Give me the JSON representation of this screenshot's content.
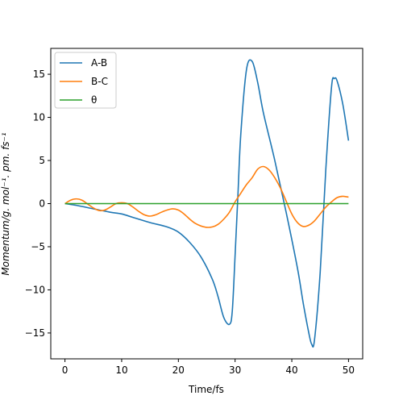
{
  "chart_data": {
    "type": "line",
    "xlabel": "Time/fs",
    "ylabel": "Momentum/g. mol⁻¹. pm. fs⁻¹",
    "xlim": [
      -2.5,
      52.5
    ],
    "ylim": [
      -18.0,
      18.0
    ],
    "xticks": [
      0,
      10,
      20,
      30,
      40,
      50
    ],
    "xtick_labels": [
      "0",
      "10",
      "20",
      "30",
      "40",
      "50"
    ],
    "yticks": [
      15,
      10,
      5,
      0,
      -5,
      -10,
      -15
    ],
    "ytick_labels": [
      "15",
      "10",
      "5",
      "0",
      "−5",
      "−10",
      "−15"
    ],
    "grid": false,
    "legend_position": "top-left",
    "series": [
      {
        "name": "A-B",
        "color": "#1f77b4",
        "x": [
          0,
          2,
          5,
          8,
          10,
          12,
          15,
          18,
          20,
          22,
          24,
          26,
          27,
          28,
          29,
          29.5,
          30,
          30.5,
          31,
          32,
          33,
          34,
          35,
          37,
          39,
          41,
          42,
          43,
          43.5,
          44,
          45,
          46,
          47,
          47.5,
          48,
          49,
          50
        ],
        "y": [
          0,
          -0.2,
          -0.6,
          -1.0,
          -1.2,
          -1.6,
          -2.2,
          -2.7,
          -3.3,
          -4.5,
          -6.2,
          -8.8,
          -10.8,
          -13.2,
          -14.0,
          -12.5,
          -6.0,
          1.0,
          8.0,
          15.5,
          16.5,
          14.0,
          10.5,
          5.0,
          -1.0,
          -7.5,
          -11.5,
          -15.0,
          -16.3,
          -15.8,
          -8.0,
          4.0,
          13.5,
          14.5,
          14.2,
          11.5,
          7.3
        ]
      },
      {
        "name": "B-C",
        "color": "#ff7f0e",
        "x": [
          0,
          1,
          2,
          3,
          4,
          5,
          6,
          7,
          8,
          9,
          10,
          11,
          12,
          13,
          14,
          15,
          16,
          17,
          18,
          19,
          20,
          21,
          22,
          23,
          24,
          25,
          26,
          27,
          28,
          29,
          30,
          31,
          32,
          33,
          34,
          35,
          36,
          37,
          38,
          39,
          40,
          41,
          42,
          43,
          44,
          45,
          46,
          47,
          48,
          49,
          50
        ],
        "y": [
          0,
          0.4,
          0.55,
          0.4,
          -0.05,
          -0.5,
          -0.8,
          -0.75,
          -0.4,
          0.0,
          0.1,
          0.0,
          -0.4,
          -0.9,
          -1.3,
          -1.45,
          -1.3,
          -1.0,
          -0.75,
          -0.6,
          -0.75,
          -1.2,
          -1.8,
          -2.3,
          -2.6,
          -2.75,
          -2.7,
          -2.4,
          -1.8,
          -1.0,
          0.2,
          1.2,
          2.2,
          3.0,
          4.0,
          4.3,
          3.9,
          3.0,
          1.8,
          0.3,
          -1.2,
          -2.2,
          -2.65,
          -2.5,
          -2.0,
          -1.2,
          -0.4,
          0.2,
          0.7,
          0.85,
          0.75
        ]
      },
      {
        "name": "θ",
        "color": "#2ca02c",
        "x": [
          0,
          50
        ],
        "y": [
          0,
          0
        ]
      }
    ]
  }
}
